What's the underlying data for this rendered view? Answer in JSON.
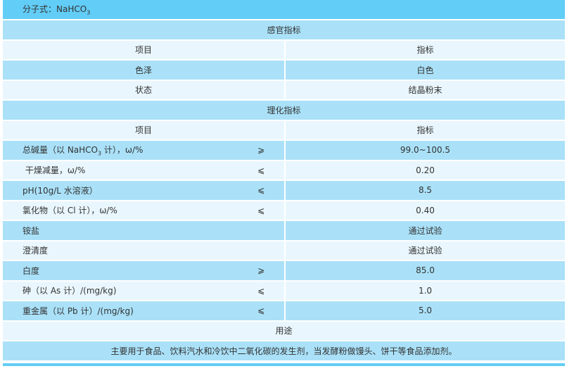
{
  "formula": {
    "label": "分子式：NaHCO",
    "sub": "3"
  },
  "sensory": {
    "title": "感官指标",
    "header": {
      "item": "项目",
      "index": "指标"
    },
    "rows": [
      {
        "item": "色泽",
        "value": "白色"
      },
      {
        "item": "状态",
        "value": "结晶粉末"
      }
    ]
  },
  "physchem": {
    "title": "理化指标",
    "header": {
      "item": "项目",
      "index": "指标"
    },
    "rows": [
      {
        "item": "总碱量（以 NaHCO",
        "sub": "3",
        "item_tail": " 计），ω/%",
        "op": "⩾",
        "value": "99.0~100.5"
      },
      {
        "item": " 干燥减量，ω/%",
        "op": "⩽",
        "value": "0.20"
      },
      {
        "item": "pH(10g/L 水溶液）",
        "op": "⩽",
        "value": "8.5"
      },
      {
        "item": "氯化物（以 Cl 计），ω/%",
        "op": "⩽",
        "value": "0.40"
      },
      {
        "item": "铵盐",
        "op": "",
        "value": "通过试验"
      },
      {
        "item": "澄清度",
        "op": "",
        "value": "通过试验"
      },
      {
        "item": "白度",
        "op": "⩾",
        "value": "85.0"
      },
      {
        "item": "砷（以 As 计）/(mg/kg)",
        "op": "⩽",
        "value": "1.0"
      },
      {
        "item": "重金属（以 Pb 计）/(mg/kg)",
        "op": "⩽",
        "value": "5.0"
      }
    ]
  },
  "usage": {
    "title": "用途",
    "text": "主要用于食品、饮料汽水和冷饮中二氧化碳的发生剂，当发酵粉做馒头、饼干等食品添加剂。"
  },
  "colors": {
    "header": "#62cdf6",
    "dark_row": "#aae1f8",
    "light_row": "#e9f6fd"
  }
}
